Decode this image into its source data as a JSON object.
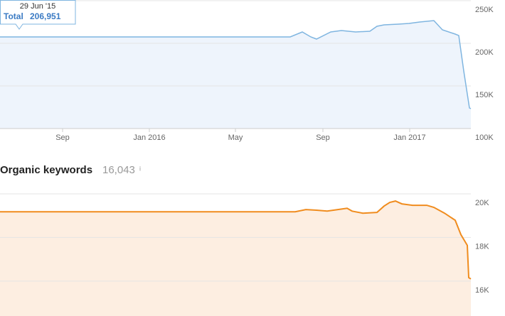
{
  "tooltip": {
    "date": "29 Jun '15",
    "label": "Total",
    "value": "206,951"
  },
  "chart_data": [
    {
      "type": "line",
      "color": "#7fb5e0",
      "fill": "#eef4fc",
      "grid": true,
      "x": [
        "2015-06-05",
        "2016-07-17",
        "2016-08-03",
        "2016-08-15",
        "2016-08-23",
        "2016-09-12",
        "2016-09-27",
        "2016-10-17",
        "2016-11-06",
        "2016-11-16",
        "2016-11-26",
        "2016-12-16",
        "2016-12-31",
        "2017-01-15",
        "2017-02-04",
        "2017-02-16",
        "2017-03-06",
        "2017-03-11",
        "2017-03-18",
        "2017-03-26",
        "2017-03-28"
      ],
      "values": [
        207500,
        207500,
        213300,
        207500,
        205000,
        213300,
        215000,
        213300,
        214200,
        220000,
        221700,
        222500,
        223300,
        225000,
        226700,
        215800,
        210800,
        209200,
        167500,
        124200,
        123300
      ],
      "xlim": [
        "2015-06-05",
        "2017-03-28"
      ],
      "xticks": [
        {
          "value": "2015-09-01",
          "label": "Sep"
        },
        {
          "value": "2016-01-01",
          "label": "Jan 2016"
        },
        {
          "value": "2016-05-01",
          "label": "May"
        },
        {
          "value": "2016-09-01",
          "label": "Sep"
        },
        {
          "value": "2017-01-01",
          "label": "Jan 2017"
        }
      ],
      "ylim": [
        100000,
        250000
      ],
      "yticks": [
        {
          "value": 250000,
          "label": "250K"
        },
        {
          "value": 200000,
          "label": "200K"
        },
        {
          "value": 150000,
          "label": "150K"
        },
        {
          "value": 100000,
          "label": "100K"
        }
      ]
    },
    {
      "type": "line",
      "title": "Organic keywords",
      "subtitle": "16,043",
      "info_icon": "i",
      "color": "#f08c1e",
      "fill": "#fdeee1",
      "grid": true,
      "x": [
        "2015-06-05",
        "2016-07-24",
        "2016-08-08",
        "2016-08-23",
        "2016-09-07",
        "2016-09-22",
        "2016-10-05",
        "2016-10-12",
        "2016-10-27",
        "2016-11-16",
        "2016-11-26",
        "2016-12-04",
        "2016-12-12",
        "2016-12-21",
        "2017-01-05",
        "2017-01-25",
        "2017-02-04",
        "2017-02-19",
        "2017-03-06",
        "2017-03-14",
        "2017-03-23",
        "2017-03-25",
        "2017-03-28"
      ],
      "values": [
        19180,
        19180,
        19280,
        19250,
        19210,
        19280,
        19340,
        19210,
        19115,
        19150,
        19440,
        19610,
        19670,
        19540,
        19475,
        19475,
        19380,
        19115,
        18790,
        18130,
        17640,
        16160,
        16100
      ],
      "xlim": [
        "2015-06-05",
        "2017-03-28"
      ],
      "ylim": [
        14400,
        20000
      ],
      "yticks": [
        {
          "value": 20000,
          "label": "20K"
        },
        {
          "value": 18000,
          "label": "18K"
        },
        {
          "value": 16000,
          "label": "16K"
        }
      ]
    }
  ]
}
